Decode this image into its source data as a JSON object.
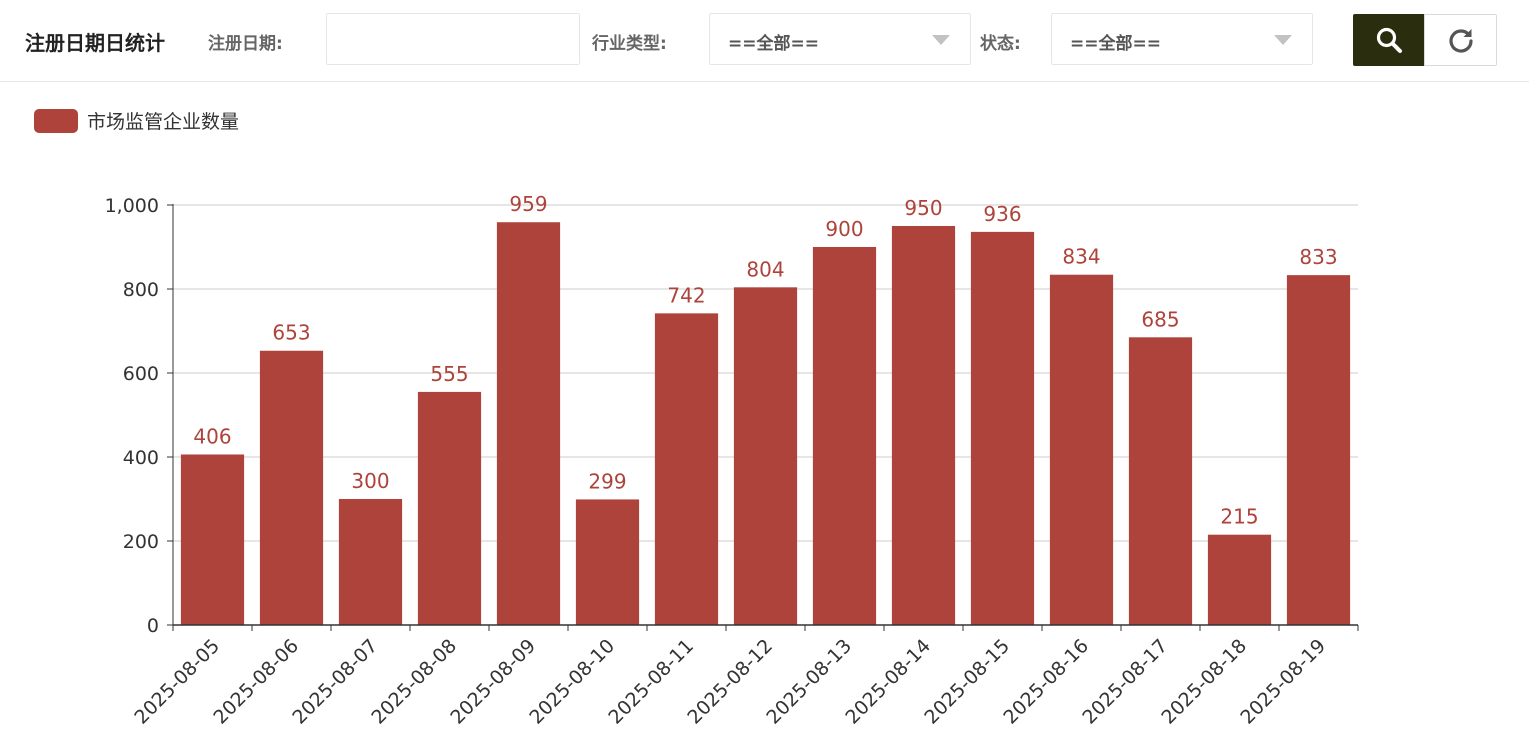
{
  "header": {
    "title": "注册日期日统计",
    "date_label": "注册日期:",
    "date_value": "",
    "industry_label": "行业类型:",
    "industry_value": "==全部==",
    "status_label": "状态:",
    "status_value": "==全部=="
  },
  "buttons": {
    "search_icon": "search-icon",
    "refresh_icon": "refresh-icon"
  },
  "colors": {
    "bar": "#ad433b",
    "search_button": "#2b2d0f"
  },
  "chart_data": {
    "type": "bar",
    "legend": [
      "市场监管企业数量"
    ],
    "legend_position": "top-left",
    "categories": [
      "2025-08-05",
      "2025-08-06",
      "2025-08-07",
      "2025-08-08",
      "2025-08-09",
      "2025-08-10",
      "2025-08-11",
      "2025-08-12",
      "2025-08-13",
      "2025-08-14",
      "2025-08-15",
      "2025-08-16",
      "2025-08-17",
      "2025-08-18",
      "2025-08-19"
    ],
    "series": [
      {
        "name": "市场监管企业数量",
        "values": [
          406,
          653,
          300,
          555,
          959,
          299,
          742,
          804,
          900,
          950,
          936,
          834,
          685,
          215,
          833
        ]
      }
    ],
    "yticks": [
      "0",
      "200",
      "400",
      "600",
      "800",
      "1,000"
    ],
    "ylim": [
      0,
      1000
    ],
    "grid": true
  }
}
